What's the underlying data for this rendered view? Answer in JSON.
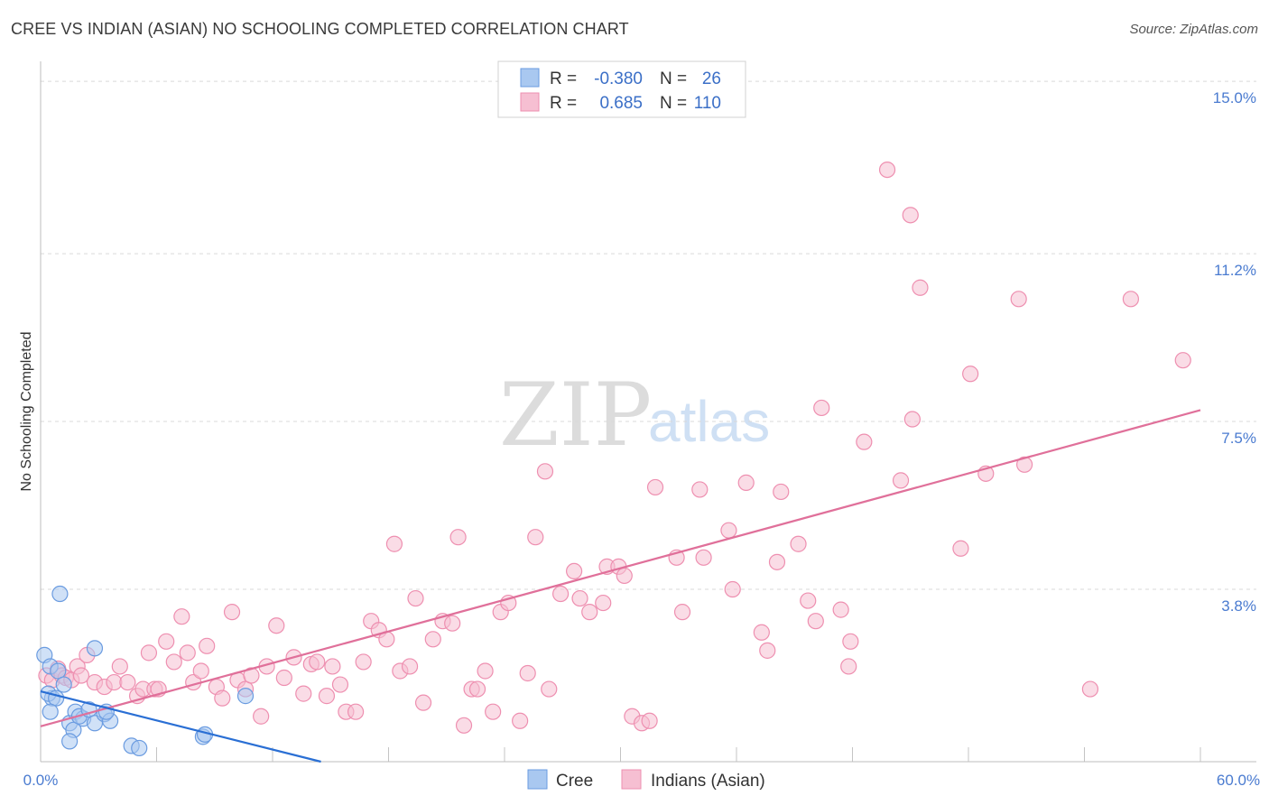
{
  "title": "CREE VS INDIAN (ASIAN) NO SCHOOLING COMPLETED CORRELATION CHART",
  "source": "Source: ZipAtlas.com",
  "watermark": {
    "part1": "ZIP",
    "part2": "atlas"
  },
  "colors": {
    "cree_fill": "#a9c8f0",
    "cree_stroke": "#6a9be0",
    "cree_line": "#2a6fd4",
    "indian_fill": "#f6bfd2",
    "indian_stroke": "#ee8fb0",
    "indian_line": "#e0709a",
    "grid": "#d9d9d9",
    "tick_text": "#4a7bd0"
  },
  "stats": [
    {
      "r_label": "R =",
      "r_value": "-0.380",
      "n_label": "N =",
      "n_value": "26",
      "series": "cree"
    },
    {
      "r_label": "R =",
      "r_value": "0.685",
      "n_label": "N =",
      "n_value": "110",
      "series": "indian"
    }
  ],
  "legend": {
    "cree": "Cree",
    "indian": "Indians (Asian)"
  },
  "chart_data": {
    "type": "scatter",
    "title": "CREE VS INDIAN (ASIAN) NO SCHOOLING COMPLETED CORRELATION CHART",
    "xlabel": "",
    "ylabel": "No Schooling Completed",
    "xlim": [
      0,
      60
    ],
    "ylim": [
      0,
      15.3
    ],
    "x_tick_labels": {
      "min": "0.0%",
      "max": "60.0%"
    },
    "y_ticks": [
      {
        "value": 3.8,
        "label": "3.8%"
      },
      {
        "value": 7.5,
        "label": "7.5%"
      },
      {
        "value": 11.2,
        "label": "11.2%"
      },
      {
        "value": 15.0,
        "label": "15.0%"
      }
    ],
    "series": [
      {
        "name": "Cree",
        "r": -0.38,
        "n": 26,
        "trend": {
          "x": [
            0,
            14.5
          ],
          "y": [
            1.55,
            0.0
          ]
        },
        "points": [
          [
            0.2,
            2.35
          ],
          [
            0.5,
            2.1
          ],
          [
            0.9,
            2.0
          ],
          [
            1.0,
            3.7
          ],
          [
            1.2,
            1.7
          ],
          [
            0.6,
            1.4
          ],
          [
            0.4,
            1.5
          ],
          [
            0.8,
            1.4
          ],
          [
            0.5,
            1.1
          ],
          [
            1.5,
            0.85
          ],
          [
            1.7,
            0.7
          ],
          [
            1.8,
            1.1
          ],
          [
            2.2,
            0.95
          ],
          [
            2.0,
            1.0
          ],
          [
            2.5,
            1.15
          ],
          [
            2.8,
            0.85
          ],
          [
            3.3,
            1.05
          ],
          [
            3.6,
            0.9
          ],
          [
            3.4,
            1.1
          ],
          [
            2.8,
            2.5
          ],
          [
            1.5,
            0.45
          ],
          [
            4.7,
            0.35
          ],
          [
            5.1,
            0.3
          ],
          [
            8.4,
            0.55
          ],
          [
            8.5,
            0.6
          ],
          [
            10.6,
            1.45
          ]
        ]
      },
      {
        "name": "Indians (Asian)",
        "r": 0.685,
        "n": 110,
        "trend": {
          "x": [
            0,
            60
          ],
          "y": [
            0.78,
            7.75
          ]
        },
        "points": [
          [
            0.3,
            1.9
          ],
          [
            0.6,
            1.8
          ],
          [
            0.9,
            2.05
          ],
          [
            1.1,
            1.9
          ],
          [
            1.3,
            1.85
          ],
          [
            1.6,
            1.8
          ],
          [
            1.9,
            2.1
          ],
          [
            2.1,
            1.9
          ],
          [
            2.4,
            2.35
          ],
          [
            2.8,
            1.75
          ],
          [
            3.3,
            1.65
          ],
          [
            3.8,
            1.75
          ],
          [
            4.1,
            2.1
          ],
          [
            4.5,
            1.75
          ],
          [
            5.0,
            1.45
          ],
          [
            5.3,
            1.6
          ],
          [
            5.6,
            2.4
          ],
          [
            5.9,
            1.6
          ],
          [
            6.1,
            1.6
          ],
          [
            6.5,
            2.65
          ],
          [
            6.9,
            2.2
          ],
          [
            7.3,
            3.2
          ],
          [
            7.6,
            2.4
          ],
          [
            7.9,
            1.75
          ],
          [
            8.3,
            2.0
          ],
          [
            8.6,
            2.55
          ],
          [
            9.1,
            1.65
          ],
          [
            9.4,
            1.4
          ],
          [
            9.9,
            3.3
          ],
          [
            10.2,
            1.8
          ],
          [
            10.6,
            1.6
          ],
          [
            10.9,
            1.9
          ],
          [
            11.4,
            1.0
          ],
          [
            11.7,
            2.1
          ],
          [
            12.2,
            3.0
          ],
          [
            12.6,
            1.85
          ],
          [
            13.1,
            2.3
          ],
          [
            13.6,
            1.5
          ],
          [
            14.0,
            2.15
          ],
          [
            14.3,
            2.2
          ],
          [
            14.8,
            1.45
          ],
          [
            15.1,
            2.1
          ],
          [
            15.5,
            1.7
          ],
          [
            15.8,
            1.1
          ],
          [
            16.3,
            1.1
          ],
          [
            16.7,
            2.2
          ],
          [
            17.1,
            3.1
          ],
          [
            17.5,
            2.9
          ],
          [
            17.9,
            2.7
          ],
          [
            18.3,
            4.8
          ],
          [
            18.6,
            2.0
          ],
          [
            19.1,
            2.1
          ],
          [
            19.4,
            3.6
          ],
          [
            19.8,
            1.3
          ],
          [
            20.3,
            2.7
          ],
          [
            20.8,
            3.1
          ],
          [
            21.3,
            3.05
          ],
          [
            21.6,
            4.95
          ],
          [
            21.9,
            0.8
          ],
          [
            22.3,
            1.6
          ],
          [
            22.6,
            1.6
          ],
          [
            23.0,
            2.0
          ],
          [
            23.4,
            1.1
          ],
          [
            23.8,
            3.3
          ],
          [
            24.2,
            3.5
          ],
          [
            24.8,
            0.9
          ],
          [
            25.2,
            1.95
          ],
          [
            25.6,
            4.95
          ],
          [
            26.1,
            6.4
          ],
          [
            26.3,
            1.6
          ],
          [
            26.9,
            3.7
          ],
          [
            27.6,
            4.2
          ],
          [
            27.9,
            3.6
          ],
          [
            28.4,
            3.3
          ],
          [
            29.1,
            3.5
          ],
          [
            29.3,
            4.3
          ],
          [
            29.9,
            4.3
          ],
          [
            30.2,
            4.1
          ],
          [
            30.6,
            1.0
          ],
          [
            31.1,
            0.85
          ],
          [
            31.5,
            0.9
          ],
          [
            31.8,
            6.05
          ],
          [
            32.9,
            4.5
          ],
          [
            33.2,
            3.3
          ],
          [
            34.1,
            6.0
          ],
          [
            34.3,
            4.5
          ],
          [
            35.6,
            5.1
          ],
          [
            35.8,
            3.8
          ],
          [
            36.5,
            6.15
          ],
          [
            37.3,
            2.85
          ],
          [
            37.6,
            2.45
          ],
          [
            38.1,
            4.4
          ],
          [
            38.3,
            5.95
          ],
          [
            39.2,
            4.8
          ],
          [
            39.7,
            3.55
          ],
          [
            40.1,
            3.1
          ],
          [
            40.4,
            7.8
          ],
          [
            41.4,
            3.35
          ],
          [
            41.8,
            2.1
          ],
          [
            41.9,
            2.65
          ],
          [
            42.6,
            7.05
          ],
          [
            43.8,
            13.05
          ],
          [
            44.5,
            6.2
          ],
          [
            45.0,
            12.05
          ],
          [
            45.1,
            7.55
          ],
          [
            45.5,
            10.45
          ],
          [
            47.6,
            4.7
          ],
          [
            48.1,
            8.55
          ],
          [
            48.9,
            6.35
          ],
          [
            50.6,
            10.2
          ],
          [
            50.9,
            6.55
          ],
          [
            54.3,
            1.6
          ],
          [
            56.4,
            10.2
          ],
          [
            59.1,
            8.85
          ]
        ]
      }
    ]
  }
}
